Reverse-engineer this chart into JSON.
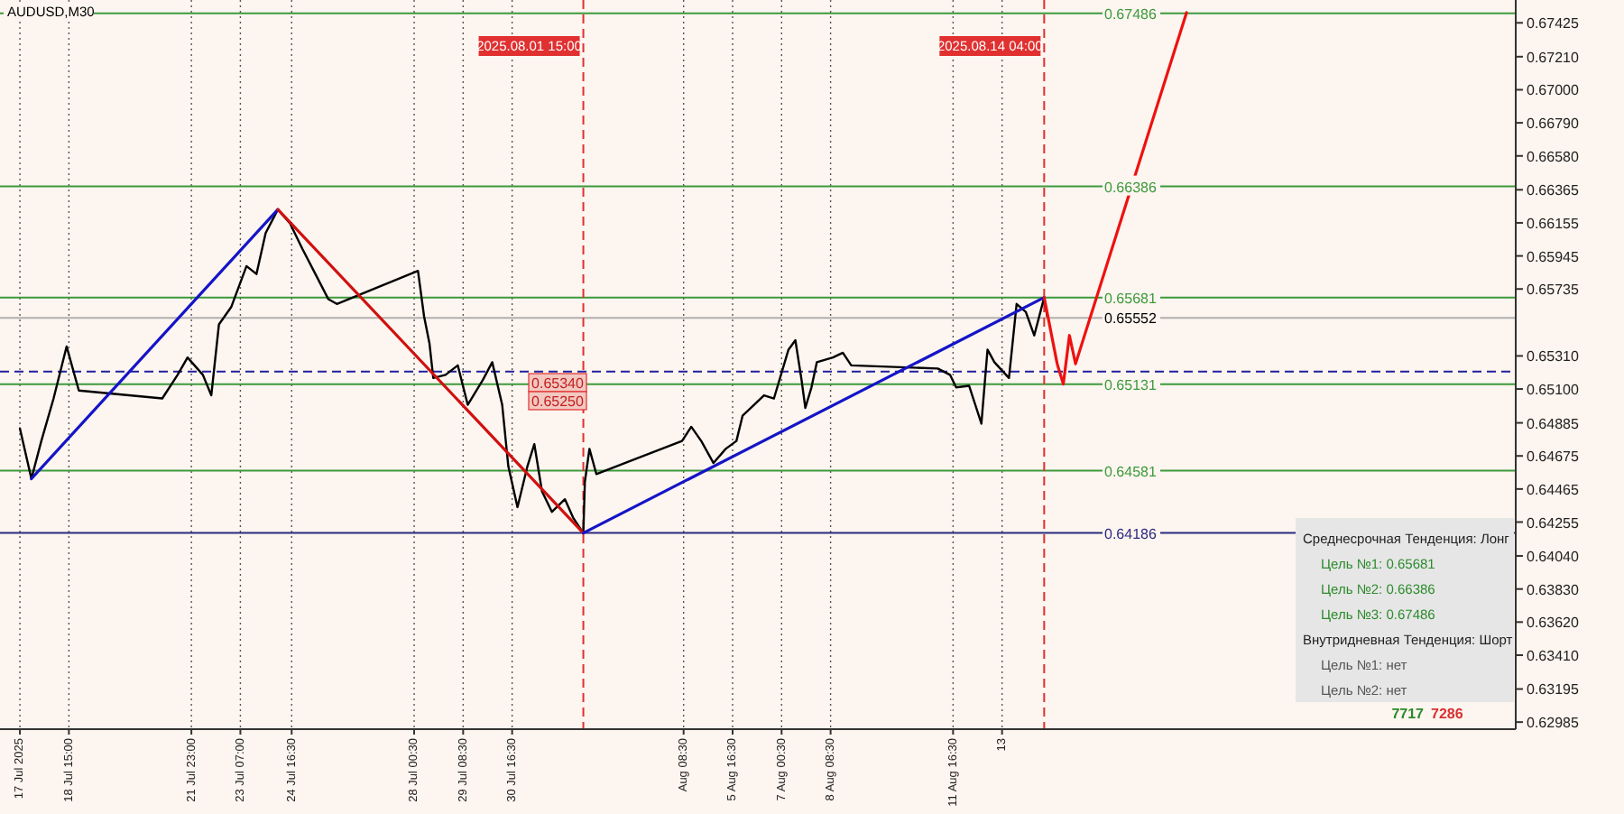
{
  "chart_data": {
    "type": "line",
    "title": "AUDUSD,M30",
    "xlim": [
      "2025-07-16T18:00",
      "2025-08-27T00:00"
    ],
    "ylim": [
      0.6294,
      0.6757
    ],
    "grid": "x",
    "marker": "none",
    "line_style": "solid",
    "xticks": [
      {
        "value": "2025-07-17T07:00",
        "label": "17 Jul 2025"
      },
      {
        "value": "2025-07-18T15:00",
        "label": "18 Jul 15:00"
      },
      {
        "value": "2025-07-21T23:00",
        "label": "21 Jul 23:00"
      },
      {
        "value": "2025-07-23T07:00",
        "label": "23 Jul 07:00"
      },
      {
        "value": "2025-07-24T16:30",
        "label": "24 Jul 16:30"
      },
      {
        "value": "2025-07-28T00:30",
        "label": "28 Jul 00:30"
      },
      {
        "value": "2025-07-29T08:30",
        "label": "29 Jul 08:30"
      },
      {
        "value": "2025-07-30T16:30",
        "label": "30 Jul 16:30"
      },
      {
        "value": "2025-08-04T08:30",
        "label": "Aug 08:30"
      },
      {
        "value": "2025-08-05T16:30",
        "label": "5 Aug 16:30"
      },
      {
        "value": "2025-08-07T00:30",
        "label": "7 Aug 00:30"
      },
      {
        "value": "2025-08-08T08:30",
        "label": "8 Aug 08:30"
      },
      {
        "value": "2025-08-11T16:30",
        "label": "11 Aug 16:30"
      },
      {
        "value": "2025-08-13T00:30",
        "label": "13"
      }
    ],
    "yticks": [
      0.67425,
      {
        "value": 0.6721,
        "label": "0.67210"
      },
      {
        "value": 0.67,
        "label": "0.67000"
      },
      {
        "value": 0.6679,
        "label": "0.66790"
      },
      {
        "value": 0.6658,
        "label": "0.66580"
      },
      0.66365,
      0.66155,
      0.65945,
      0.65735,
      {
        "value": 0.6531,
        "label": "0.65310"
      },
      {
        "value": 0.651,
        "label": "0.65100"
      },
      0.64885,
      0.64675,
      0.64465,
      0.64255,
      {
        "value": 0.6404,
        "label": "0.64040"
      },
      {
        "value": 0.6383,
        "label": "0.63830"
      },
      {
        "value": 0.6362,
        "label": "0.63620"
      },
      {
        "value": 0.6341,
        "label": "0.63410"
      },
      0.63195,
      0.62985
    ],
    "series": [
      {
        "color": "#000000",
        "x": [
          "2025-07-17T07:00",
          "2025-07-17T14:30",
          "2025-07-17T21:00",
          "2025-07-18T05:00",
          "2025-07-18T13:30",
          "2025-07-18T21:30",
          "2025-07-21T04:00",
          "2025-07-21T14:00",
          "2025-07-21T20:30",
          "2025-07-22T06:30",
          "2025-07-22T12:00",
          "2025-07-22T17:00",
          "2025-07-23T01:00",
          "2025-07-23T11:00",
          "2025-07-23T17:30",
          "2025-07-23T23:30",
          "2025-07-24T07:30",
          "2025-07-24T15:30",
          "2025-07-24T23:30",
          "2025-07-25T08:00",
          "2025-07-25T16:30",
          "2025-07-25T22:00",
          "2025-07-28T03:00",
          "2025-07-28T07:00",
          "2025-07-28T10:30",
          "2025-07-28T13:00",
          "2025-07-28T21:00",
          "2025-07-29T05:00",
          "2025-07-29T11:30",
          "2025-07-29T21:30",
          "2025-07-30T03:30",
          "2025-07-30T10:00",
          "2025-07-30T14:00",
          "2025-07-30T20:00",
          "2025-07-31T02:30",
          "2025-07-31T07:00",
          "2025-07-31T12:00",
          "2025-07-31T18:30",
          "2025-08-01T03:00",
          "2025-08-01T08:30",
          "2025-08-01T15:00",
          "2025-08-01T16:00",
          "2025-08-01T19:00",
          "2025-08-01T23:30",
          "2025-08-04T07:30",
          "2025-08-04T13:30",
          "2025-08-04T20:00",
          "2025-08-05T04:00",
          "2025-08-05T12:00",
          "2025-08-05T19:00",
          "2025-08-05T23:00",
          "2025-08-06T04:30",
          "2025-08-06T13:00",
          "2025-08-06T19:30",
          "2025-08-07T05:00",
          "2025-08-07T09:30",
          "2025-08-07T13:30",
          "2025-08-07T16:00",
          "2025-08-07T20:00",
          "2025-08-07T23:30",
          "2025-08-08T10:00",
          "2025-08-08T16:30",
          "2025-08-08T22:00",
          "2025-08-11T06:30",
          "2025-08-11T14:30",
          "2025-08-11T18:30",
          "2025-08-12T03:00",
          "2025-08-12T07:00",
          "2025-08-12T11:00",
          "2025-08-12T15:00",
          "2025-08-12T19:30",
          "2025-08-13T05:00",
          "2025-08-13T10:00",
          "2025-08-13T16:00",
          "2025-08-13T21:30",
          "2025-08-14T04:00",
          "2025-08-14T06:00"
        ],
        "values": [
          0.6485,
          0.6453,
          0.6477,
          0.6504,
          0.6537,
          0.6509,
          0.6504,
          0.6519,
          0.653,
          0.6519,
          0.6506,
          0.6551,
          0.6562,
          0.6588,
          0.6583,
          0.6609,
          0.6624,
          0.6615,
          0.6599,
          0.6583,
          0.6567,
          0.6564,
          0.6585,
          0.6556,
          0.6539,
          0.6517,
          0.6519,
          0.6525,
          0.65,
          0.6516,
          0.6527,
          0.65,
          0.6461,
          0.6435,
          0.6461,
          0.6475,
          0.6445,
          0.6432,
          0.644,
          0.6428,
          0.64186,
          0.6451,
          0.6472,
          0.6456,
          0.6477,
          0.6486,
          0.6477,
          0.6463,
          0.6472,
          0.6477,
          0.6493,
          0.6498,
          0.6506,
          0.6504,
          0.6535,
          0.6541,
          0.6516,
          0.6498,
          0.6511,
          0.6527,
          0.653,
          0.6533,
          0.6525,
          0.6523,
          0.6519,
          0.6511,
          0.6512,
          0.65,
          0.6488,
          0.6535,
          0.6527,
          0.6517,
          0.6564,
          0.6559,
          0.6544,
          0.65681,
          0.6556
        ]
      },
      {
        "color": "#1414c8",
        "x": [
          "2025-07-17T14:30",
          "2025-07-24T07:30"
        ],
        "values": [
          0.6453,
          0.6624
        ]
      },
      {
        "color": "#d01010",
        "x": [
          "2025-07-24T07:30",
          "2025-08-01T15:00"
        ],
        "values": [
          0.6624,
          0.64186
        ]
      },
      {
        "color": "#1414c8",
        "x": [
          "2025-08-01T15:00",
          "2025-08-14T04:00"
        ],
        "values": [
          0.64186,
          0.65681
        ]
      },
      {
        "color": "#ee1111",
        "x": [
          "2025-08-14T04:00",
          "2025-08-14T12:30",
          "2025-08-14T16:30",
          "2025-08-14T20:30",
          "2025-08-15T00:30",
          "2025-08-18T01:00"
        ],
        "values": [
          0.65681,
          0.6526,
          0.65131,
          0.6544,
          0.6526,
          0.6749
        ]
      }
    ],
    "ref_lines": [
      {
        "axis": "x",
        "value": "2025-08-01T15:00",
        "label": "2025.08.01 15:00",
        "color": "#e03030",
        "line_style": "dashed"
      },
      {
        "axis": "x",
        "value": "2025-08-14T04:00",
        "label": "2025.08.14 04:00",
        "color": "#e03030",
        "line_style": "dashed"
      },
      {
        "axis": "y",
        "value": 0.65552,
        "label": "0.65552",
        "color": "#b0b0b0"
      },
      {
        "axis": "y",
        "value": 0.67486,
        "label": "0.67486",
        "color": "#3c9a3c"
      },
      {
        "axis": "y",
        "value": 0.66386,
        "label": "0.66386",
        "color": "#3c9a3c"
      },
      {
        "axis": "y",
        "value": 0.65681,
        "label": "0.65681",
        "color": "#3c9a3c"
      },
      {
        "axis": "y",
        "value": 0.65131,
        "label": "0.65131",
        "color": "#3c9a3c"
      },
      {
        "axis": "y",
        "value": 0.64581,
        "label": "0.64581",
        "color": "#3c9a3c"
      },
      {
        "axis": "y",
        "value": 0.64186,
        "label": "0.64186",
        "color": "#2a2a80"
      },
      {
        "axis": "y",
        "value": 0.6521,
        "color": "#2020a0",
        "line_style": "dashed"
      }
    ],
    "annotations": [
      "0.65340",
      "0.65250",
      "Среднесрочная Тенденция: Лонг",
      "Цель №1: 0.65681",
      "Цель №2: 0.66386",
      "Цель №3: 0.67486",
      "Внутридневная Тенденция: Шорт",
      "Цель №1: нет",
      "Цель №2: нет",
      "7717",
      "7286"
    ]
  }
}
